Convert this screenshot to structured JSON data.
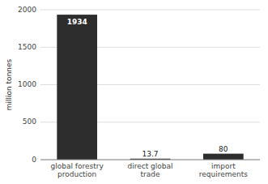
{
  "chart_data": {
    "type": "bar",
    "categories": [
      "global forestry\nproduction",
      "direct global\ntrade",
      "import\nrequirements"
    ],
    "values": [
      1934,
      13.7,
      80
    ],
    "value_labels": [
      "1934",
      "13.7",
      "80"
    ],
    "data_labels": true,
    "color": "#2d2d2d",
    "ylabel": "million tonnes",
    "ylim": [
      0,
      2000
    ],
    "yticks": [
      0,
      500,
      1000,
      1500,
      2000
    ],
    "grid": true
  }
}
